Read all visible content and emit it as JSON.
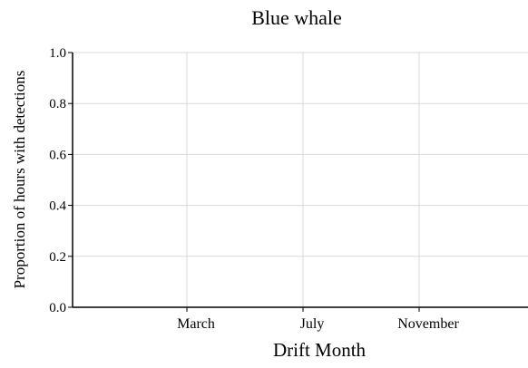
{
  "chart_data": {
    "type": "bar",
    "title": "Blue whale",
    "xlabel": "Drift Month",
    "ylabel": "Proportion of hours with detections",
    "ylim": [
      0,
      1
    ],
    "yticks": [
      "0.0",
      "0.2",
      "0.4",
      "0.6",
      "0.8",
      "1.0"
    ],
    "xticks": [
      "March",
      "July",
      "November"
    ],
    "series": [],
    "grid": true,
    "grid_color": "#d9d9d9",
    "axis_color": "#000000"
  }
}
